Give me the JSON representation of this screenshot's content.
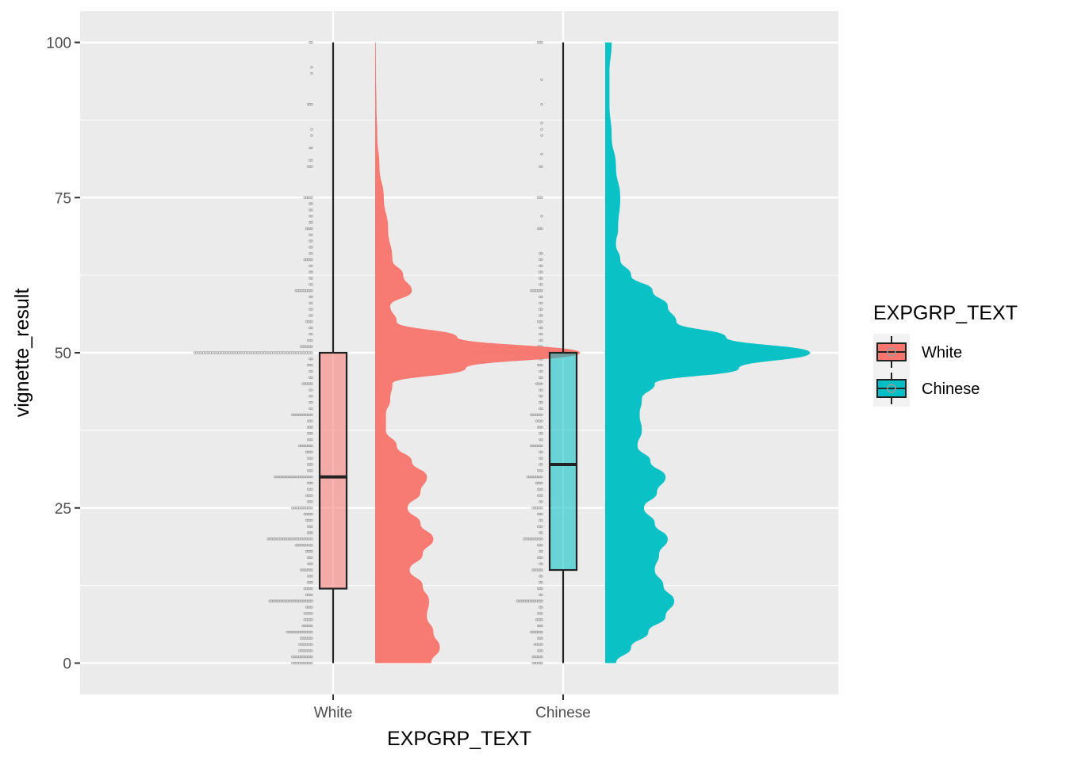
{
  "chart_data": {
    "type": "raincloud",
    "xlabel": "EXPGRP_TEXT",
    "ylabel": "vignette_result",
    "categories": [
      "White",
      "Chinese"
    ],
    "ylim": [
      -5,
      105
    ],
    "yticks": [
      0,
      25,
      50,
      75,
      100
    ],
    "ytick_labels": [
      "0",
      "25",
      "50",
      "75",
      "100"
    ],
    "grid": true,
    "legend": {
      "title": "EXPGRP_TEXT",
      "position": "right",
      "entries": [
        "White",
        "Chinese"
      ]
    },
    "colors": {
      "White": "#F8766D",
      "Chinese": "#00BFC4",
      "points": "#9a9a9a",
      "panel": "#EBEBEB",
      "grid": "#FFFFFF"
    },
    "series": [
      {
        "name": "White",
        "box": {
          "min": 0,
          "q1": 12,
          "median": 30,
          "q3": 50,
          "max": 100
        },
        "density": [
          [
            0,
            0.26
          ],
          [
            2.5,
            0.3
          ],
          [
            5,
            0.27
          ],
          [
            7.5,
            0.24
          ],
          [
            10,
            0.25
          ],
          [
            12.5,
            0.22
          ],
          [
            15,
            0.16
          ],
          [
            17.5,
            0.22
          ],
          [
            20,
            0.27
          ],
          [
            22.5,
            0.21
          ],
          [
            25,
            0.15
          ],
          [
            27.5,
            0.21
          ],
          [
            30,
            0.24
          ],
          [
            32.5,
            0.17
          ],
          [
            35,
            0.1
          ],
          [
            37.5,
            0.05
          ],
          [
            40,
            0.05
          ],
          [
            42.5,
            0.07
          ],
          [
            45,
            0.08
          ],
          [
            47.5,
            0.42
          ],
          [
            50,
            0.95
          ],
          [
            52.5,
            0.38
          ],
          [
            55,
            0.1
          ],
          [
            57.5,
            0.07
          ],
          [
            60,
            0.17
          ],
          [
            62.5,
            0.13
          ],
          [
            65,
            0.08
          ],
          [
            70,
            0.06
          ],
          [
            75,
            0.04
          ],
          [
            80,
            0.02
          ],
          [
            85,
            0.01
          ],
          [
            90,
            0.006
          ],
          [
            95,
            0.004
          ],
          [
            100,
            0.003
          ]
        ],
        "points": [
          [
            0,
            12
          ],
          [
            1,
            12
          ],
          [
            2,
            8
          ],
          [
            3,
            8
          ],
          [
            4,
            7
          ],
          [
            5,
            15
          ],
          [
            6,
            6
          ],
          [
            7,
            5
          ],
          [
            8,
            5
          ],
          [
            9,
            4
          ],
          [
            10,
            25
          ],
          [
            11,
            4
          ],
          [
            12,
            5
          ],
          [
            13,
            3
          ],
          [
            14,
            3
          ],
          [
            15,
            7
          ],
          [
            16,
            3
          ],
          [
            17,
            3
          ],
          [
            18,
            4
          ],
          [
            19,
            10
          ],
          [
            20,
            26
          ],
          [
            21,
            3
          ],
          [
            22,
            3
          ],
          [
            23,
            4
          ],
          [
            24,
            5
          ],
          [
            25,
            12
          ],
          [
            26,
            3
          ],
          [
            27,
            4
          ],
          [
            28,
            3
          ],
          [
            29,
            3
          ],
          [
            30,
            22
          ],
          [
            31,
            3
          ],
          [
            32,
            3
          ],
          [
            33,
            3
          ],
          [
            34,
            4
          ],
          [
            35,
            8
          ],
          [
            36,
            3
          ],
          [
            37,
            3
          ],
          [
            38,
            3
          ],
          [
            39,
            3
          ],
          [
            40,
            12
          ],
          [
            41,
            2
          ],
          [
            42,
            2
          ],
          [
            43,
            2
          ],
          [
            44,
            2
          ],
          [
            45,
            6
          ],
          [
            46,
            2
          ],
          [
            47,
            2
          ],
          [
            48,
            3
          ],
          [
            49,
            2
          ],
          [
            50,
            68
          ],
          [
            51,
            7
          ],
          [
            52,
            3
          ],
          [
            53,
            2
          ],
          [
            54,
            2
          ],
          [
            55,
            4
          ],
          [
            56,
            2
          ],
          [
            57,
            2
          ],
          [
            58,
            2
          ],
          [
            59,
            2
          ],
          [
            60,
            10
          ],
          [
            61,
            2
          ],
          [
            62,
            2
          ],
          [
            63,
            2
          ],
          [
            64,
            2
          ],
          [
            65,
            5
          ],
          [
            66,
            2
          ],
          [
            67,
            2
          ],
          [
            68,
            2
          ],
          [
            69,
            2
          ],
          [
            70,
            4
          ],
          [
            71,
            2
          ],
          [
            72,
            2
          ],
          [
            73,
            2
          ],
          [
            74,
            2
          ],
          [
            75,
            5
          ],
          [
            80,
            3
          ],
          [
            81,
            2
          ],
          [
            83,
            2
          ],
          [
            85,
            1
          ],
          [
            86,
            1
          ],
          [
            90,
            3
          ],
          [
            95,
            1
          ],
          [
            96,
            1
          ],
          [
            100,
            2
          ]
        ]
      },
      {
        "name": "Chinese",
        "box": {
          "min": 0,
          "q1": 15,
          "median": 32,
          "q3": 50,
          "max": 100
        },
        "density": [
          [
            0,
            0.05
          ],
          [
            2.5,
            0.12
          ],
          [
            5,
            0.2
          ],
          [
            7.5,
            0.28
          ],
          [
            10,
            0.32
          ],
          [
            12.5,
            0.27
          ],
          [
            15,
            0.23
          ],
          [
            17.5,
            0.25
          ],
          [
            20,
            0.29
          ],
          [
            22.5,
            0.23
          ],
          [
            25,
            0.18
          ],
          [
            27.5,
            0.24
          ],
          [
            30,
            0.28
          ],
          [
            32.5,
            0.21
          ],
          [
            35,
            0.15
          ],
          [
            37.5,
            0.17
          ],
          [
            40,
            0.16
          ],
          [
            42.5,
            0.17
          ],
          [
            45,
            0.23
          ],
          [
            47.5,
            0.62
          ],
          [
            50,
            0.95
          ],
          [
            52.5,
            0.56
          ],
          [
            55,
            0.33
          ],
          [
            57.5,
            0.29
          ],
          [
            60,
            0.22
          ],
          [
            62.5,
            0.12
          ],
          [
            65,
            0.07
          ],
          [
            67.5,
            0.05
          ],
          [
            70,
            0.06
          ],
          [
            75,
            0.07
          ],
          [
            80,
            0.05
          ],
          [
            85,
            0.03
          ],
          [
            90,
            0.02
          ],
          [
            95,
            0.02
          ],
          [
            100,
            0.03
          ]
        ],
        "points": [
          [
            0,
            6
          ],
          [
            1,
            6
          ],
          [
            2,
            3
          ],
          [
            3,
            5
          ],
          [
            4,
            3
          ],
          [
            5,
            7
          ],
          [
            6,
            3
          ],
          [
            7,
            4
          ],
          [
            8,
            3
          ],
          [
            9,
            2
          ],
          [
            10,
            15
          ],
          [
            11,
            2
          ],
          [
            12,
            3
          ],
          [
            13,
            2
          ],
          [
            14,
            2
          ],
          [
            15,
            6
          ],
          [
            16,
            2
          ],
          [
            17,
            3
          ],
          [
            18,
            2
          ],
          [
            19,
            3
          ],
          [
            20,
            11
          ],
          [
            21,
            2
          ],
          [
            22,
            3
          ],
          [
            23,
            2
          ],
          [
            24,
            3
          ],
          [
            25,
            6
          ],
          [
            26,
            2
          ],
          [
            27,
            3
          ],
          [
            28,
            3
          ],
          [
            29,
            4
          ],
          [
            30,
            9
          ],
          [
            31,
            3
          ],
          [
            32,
            2
          ],
          [
            33,
            2
          ],
          [
            34,
            2
          ],
          [
            35,
            7
          ],
          [
            36,
            2
          ],
          [
            37,
            2
          ],
          [
            38,
            3
          ],
          [
            39,
            4
          ],
          [
            40,
            7
          ],
          [
            41,
            2
          ],
          [
            42,
            2
          ],
          [
            43,
            2
          ],
          [
            44,
            2
          ],
          [
            45,
            4
          ],
          [
            46,
            2
          ],
          [
            47,
            2
          ],
          [
            48,
            3
          ],
          [
            49,
            2
          ],
          [
            50,
            42
          ],
          [
            51,
            3
          ],
          [
            52,
            2
          ],
          [
            53,
            2
          ],
          [
            54,
            2
          ],
          [
            55,
            3
          ],
          [
            56,
            2
          ],
          [
            57,
            2
          ],
          [
            58,
            2
          ],
          [
            59,
            2
          ],
          [
            60,
            7
          ],
          [
            61,
            2
          ],
          [
            62,
            2
          ],
          [
            63,
            2
          ],
          [
            64,
            2
          ],
          [
            65,
            2
          ],
          [
            66,
            2
          ],
          [
            70,
            3
          ],
          [
            72,
            1
          ],
          [
            75,
            3
          ],
          [
            80,
            2
          ],
          [
            82,
            1
          ],
          [
            85,
            1
          ],
          [
            86,
            1
          ],
          [
            87,
            1
          ],
          [
            90,
            1
          ],
          [
            94,
            1
          ],
          [
            100,
            3
          ]
        ]
      }
    ]
  }
}
